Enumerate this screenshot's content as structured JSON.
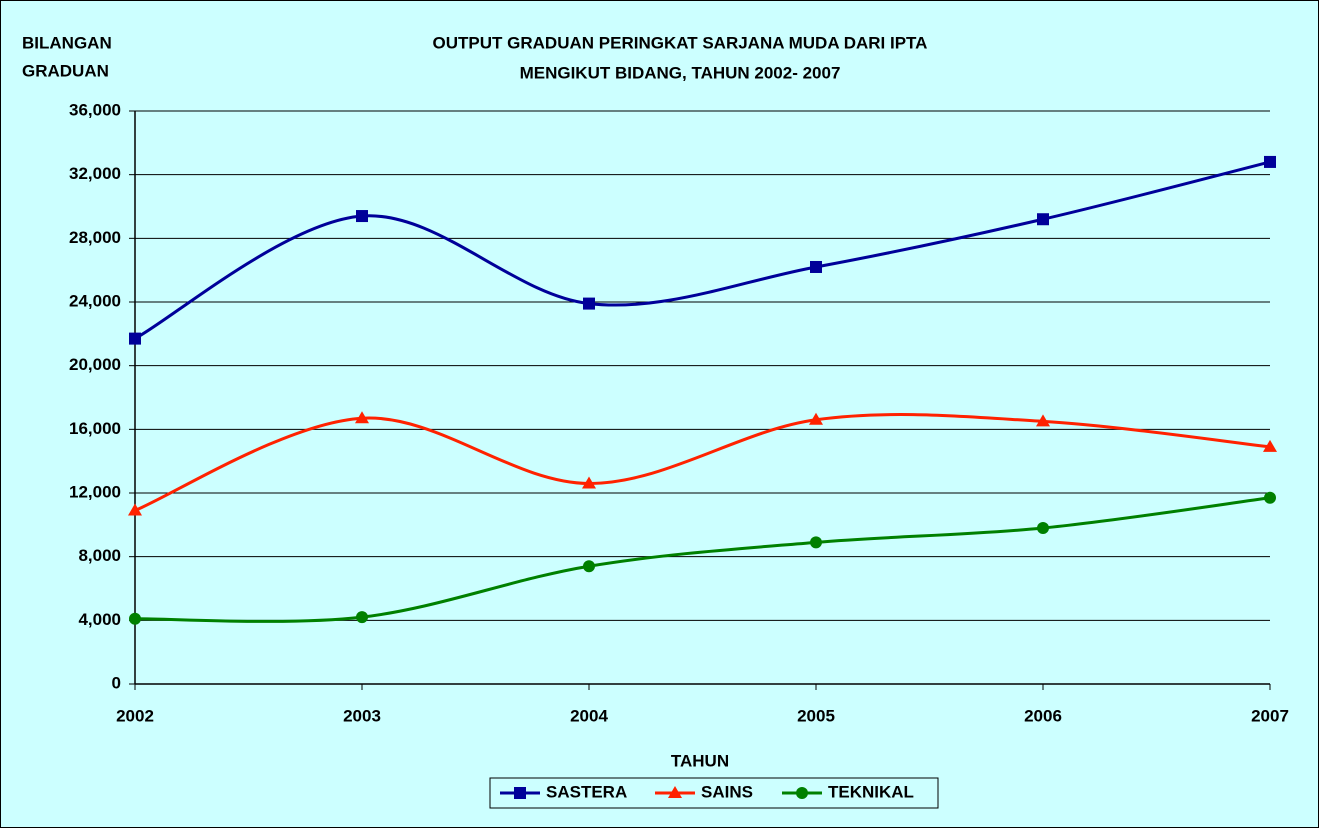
{
  "chart_data": {
    "type": "line",
    "title": [
      "OUTPUT  GRADUAN PERINGKAT SARJANA MUDA DARI IPTA",
      "MENGIKUT BIDANG, TAHUN 2002- 2007"
    ],
    "y_label": [
      "BILANGAN",
      "GRADUAN"
    ],
    "x_label": "TAHUN",
    "categories": [
      "2002",
      "2003",
      "2004",
      "2005",
      "2006",
      "2007"
    ],
    "series": [
      {
        "name": "SASTERA",
        "color": "#000099",
        "marker": "square",
        "values": [
          21700,
          29400,
          23900,
          26200,
          29200,
          32800
        ]
      },
      {
        "name": "SAINS",
        "color": "#ff2200",
        "marker": "triangle",
        "values": [
          10900,
          16700,
          12600,
          16600,
          16500,
          14900
        ]
      },
      {
        "name": "TEKNIKAL",
        "color": "#008000",
        "marker": "circle",
        "values": [
          4100,
          4200,
          7400,
          8900,
          9800,
          11700
        ]
      }
    ],
    "ylim": [
      0,
      36000
    ],
    "yticks": [
      {
        "value": 0,
        "label": "0"
      },
      {
        "value": 4000,
        "label": "4,000"
      },
      {
        "value": 8000,
        "label": "8,000"
      },
      {
        "value": 12000,
        "label": "12,000"
      },
      {
        "value": 16000,
        "label": "16,000"
      },
      {
        "value": 20000,
        "label": "20,000"
      },
      {
        "value": 24000,
        "label": "24,000"
      },
      {
        "value": 28000,
        "label": "28,000"
      },
      {
        "value": 32000,
        "label": "32,000"
      },
      {
        "value": 36000,
        "label": "36,000"
      }
    ],
    "grid": true,
    "legend": "bottom"
  }
}
